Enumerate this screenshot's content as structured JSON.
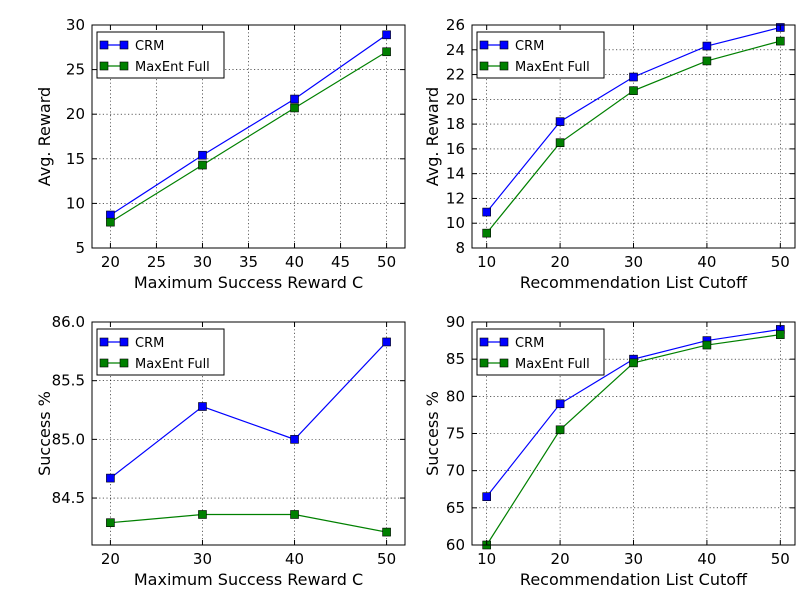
{
  "colors": {
    "crm": "#0000ff",
    "maxent": "#008000"
  },
  "chart_data": [
    {
      "type": "line",
      "x": [
        20,
        30,
        40,
        50
      ],
      "xlim": [
        18,
        52
      ],
      "ylim": [
        5,
        30
      ],
      "xticks": [
        "20",
        "25",
        "30",
        "35",
        "40",
        "45",
        "50"
      ],
      "yticks": [
        "5",
        "10",
        "15",
        "20",
        "25",
        "30"
      ],
      "xlabel": "Maximum Success Reward C",
      "ylabel": "Avg. Reward",
      "legend": "upper-left",
      "series": [
        {
          "name": "CRM",
          "values": [
            8.7,
            15.4,
            21.7,
            28.9
          ]
        },
        {
          "name": "MaxEnt Full",
          "values": [
            7.9,
            14.3,
            20.7,
            27.0
          ]
        }
      ]
    },
    {
      "type": "line",
      "x": [
        10,
        20,
        30,
        40,
        50
      ],
      "xlim": [
        8,
        52
      ],
      "ylim": [
        8,
        26
      ],
      "xticks": [
        "10",
        "20",
        "30",
        "40",
        "50"
      ],
      "yticks": [
        "8",
        "10",
        "12",
        "14",
        "16",
        "18",
        "20",
        "22",
        "24",
        "26"
      ],
      "xlabel": "Recommendation List Cutoff",
      "ylabel": "Avg. Reward",
      "legend": "upper-left",
      "series": [
        {
          "name": "CRM",
          "values": [
            10.9,
            18.2,
            21.8,
            24.3,
            25.8
          ]
        },
        {
          "name": "MaxEnt Full",
          "values": [
            9.2,
            16.5,
            20.7,
            23.1,
            24.7
          ]
        }
      ]
    },
    {
      "type": "line",
      "x": [
        20,
        30,
        40,
        50
      ],
      "xlim": [
        18,
        52
      ],
      "ylim": [
        84.1,
        86.0
      ],
      "xticks": [
        "20",
        "30",
        "40",
        "50"
      ],
      "yticks": [
        "84.5",
        "85.0",
        "85.5",
        "86.0"
      ],
      "xlabel": "Maximum Success Reward C",
      "ylabel": "Success %",
      "legend": "upper-left",
      "series": [
        {
          "name": "CRM",
          "values": [
            84.67,
            85.28,
            85.0,
            85.83
          ]
        },
        {
          "name": "MaxEnt Full",
          "values": [
            84.29,
            84.36,
            84.36,
            84.21
          ]
        }
      ]
    },
    {
      "type": "line",
      "x": [
        10,
        20,
        30,
        40,
        50
      ],
      "xlim": [
        8,
        52
      ],
      "ylim": [
        60,
        90
      ],
      "xticks": [
        "10",
        "20",
        "30",
        "40",
        "50"
      ],
      "yticks": [
        "60",
        "65",
        "70",
        "75",
        "80",
        "85",
        "90"
      ],
      "xlabel": "Recommendation List Cutoff",
      "ylabel": "Success %",
      "legend": "upper-left",
      "series": [
        {
          "name": "CRM",
          "values": [
            66.5,
            79.0,
            85.0,
            87.5,
            89.0
          ]
        },
        {
          "name": "MaxEnt Full",
          "values": [
            60.0,
            75.5,
            84.5,
            86.9,
            88.3
          ]
        }
      ]
    }
  ]
}
